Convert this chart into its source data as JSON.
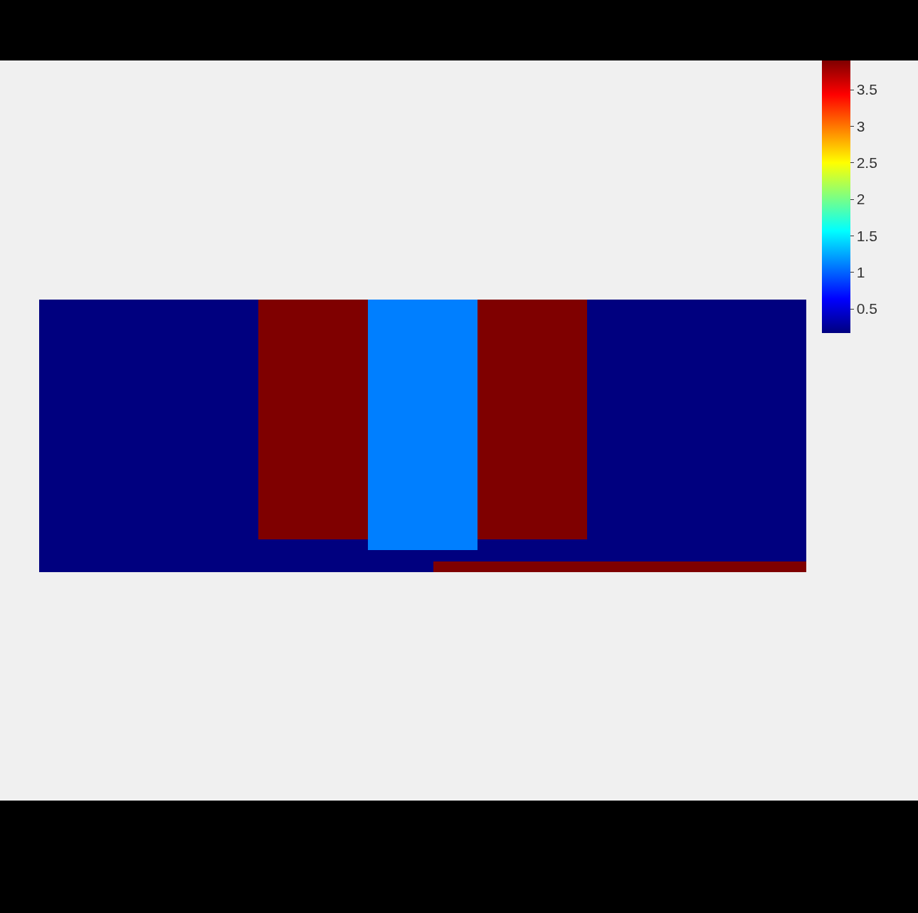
{
  "chart_data": {
    "type": "heatmap",
    "categories": [
      null,
      null,
      null,
      null,
      null,
      null,
      null,
      null,
      null,
      null,
      null,
      null,
      null,
      null,
      null,
      null,
      null,
      null,
      null,
      null,
      null,
      null,
      null,
      null,
      null,
      null,
      null,
      null,
      null,
      null,
      null,
      null,
      null,
      null,
      null
    ],
    "y_categories": [
      null,
      null,
      null,
      null,
      null,
      null,
      null,
      null,
      null,
      null,
      null,
      null,
      null,
      null,
      null,
      null,
      null,
      null,
      null,
      null,
      null,
      null,
      null,
      null,
      null
    ],
    "cells": [
      [
        0.17,
        0.17,
        0.17,
        0.17,
        0.17,
        0.17,
        0.17,
        0.17,
        0.17,
        0.17,
        3.9,
        3.9,
        3.9,
        3.9,
        3.9,
        1.1,
        1.1,
        1.1,
        1.1,
        1.1,
        3.9,
        3.9,
        3.9,
        3.9,
        3.9,
        0.17,
        0.17,
        0.17,
        0.17,
        0.17,
        0.17,
        0.17,
        0.17,
        0.17,
        0.17
      ],
      [
        0.17,
        0.17,
        0.17,
        0.17,
        0.17,
        0.17,
        0.17,
        0.17,
        0.17,
        0.17,
        3.9,
        3.9,
        3.9,
        3.9,
        3.9,
        1.1,
        1.1,
        1.1,
        1.1,
        1.1,
        3.9,
        3.9,
        3.9,
        3.9,
        3.9,
        0.17,
        0.17,
        0.17,
        0.17,
        0.17,
        0.17,
        0.17,
        0.17,
        0.17,
        0.17
      ],
      [
        0.17,
        0.17,
        0.17,
        0.17,
        0.17,
        0.17,
        0.17,
        0.17,
        0.17,
        0.17,
        3.9,
        3.9,
        3.9,
        3.9,
        3.9,
        1.1,
        1.1,
        1.1,
        1.1,
        1.1,
        3.9,
        3.9,
        3.9,
        3.9,
        3.9,
        0.17,
        0.17,
        0.17,
        0.17,
        0.17,
        0.17,
        0.17,
        0.17,
        0.17,
        0.17
      ],
      [
        0.17,
        0.17,
        0.17,
        0.17,
        0.17,
        0.17,
        0.17,
        0.17,
        0.17,
        0.17,
        3.9,
        3.9,
        3.9,
        3.9,
        3.9,
        1.1,
        1.1,
        1.1,
        1.1,
        1.1,
        3.9,
        3.9,
        3.9,
        3.9,
        3.9,
        0.17,
        0.17,
        0.17,
        0.17,
        0.17,
        0.17,
        0.17,
        0.17,
        0.17,
        0.17
      ],
      [
        0.17,
        0.17,
        0.17,
        0.17,
        0.17,
        0.17,
        0.17,
        0.17,
        0.17,
        0.17,
        3.9,
        3.9,
        3.9,
        3.9,
        3.9,
        1.1,
        1.1,
        1.1,
        1.1,
        1.1,
        3.9,
        3.9,
        3.9,
        3.9,
        3.9,
        0.17,
        0.17,
        0.17,
        0.17,
        0.17,
        0.17,
        0.17,
        0.17,
        0.17,
        0.17
      ],
      [
        0.17,
        0.17,
        0.17,
        0.17,
        0.17,
        0.17,
        0.17,
        0.17,
        0.17,
        0.17,
        3.9,
        3.9,
        3.9,
        3.9,
        3.9,
        1.1,
        1.1,
        1.1,
        1.1,
        1.1,
        3.9,
        3.9,
        3.9,
        3.9,
        3.9,
        0.17,
        0.17,
        0.17,
        0.17,
        0.17,
        0.17,
        0.17,
        0.17,
        0.17,
        0.17
      ],
      [
        0.17,
        0.17,
        0.17,
        0.17,
        0.17,
        0.17,
        0.17,
        0.17,
        0.17,
        0.17,
        3.9,
        3.9,
        3.9,
        3.9,
        3.9,
        1.1,
        1.1,
        1.1,
        1.1,
        1.1,
        3.9,
        3.9,
        3.9,
        3.9,
        3.9,
        0.17,
        0.17,
        0.17,
        0.17,
        0.17,
        0.17,
        0.17,
        0.17,
        0.17,
        0.17
      ],
      [
        0.17,
        0.17,
        0.17,
        0.17,
        0.17,
        0.17,
        0.17,
        0.17,
        0.17,
        0.17,
        3.9,
        3.9,
        3.9,
        3.9,
        3.9,
        1.1,
        1.1,
        1.1,
        1.1,
        1.1,
        3.9,
        3.9,
        3.9,
        3.9,
        3.9,
        0.17,
        0.17,
        0.17,
        0.17,
        0.17,
        0.17,
        0.17,
        0.17,
        0.17,
        0.17
      ],
      [
        0.17,
        0.17,
        0.17,
        0.17,
        0.17,
        0.17,
        0.17,
        0.17,
        0.17,
        0.17,
        3.9,
        3.9,
        3.9,
        3.9,
        3.9,
        1.1,
        1.1,
        1.1,
        1.1,
        1.1,
        3.9,
        3.9,
        3.9,
        3.9,
        3.9,
        0.17,
        0.17,
        0.17,
        0.17,
        0.17,
        0.17,
        0.17,
        0.17,
        0.17,
        0.17
      ],
      [
        0.17,
        0.17,
        0.17,
        0.17,
        0.17,
        0.17,
        0.17,
        0.17,
        0.17,
        0.17,
        3.9,
        3.9,
        3.9,
        3.9,
        3.9,
        1.1,
        1.1,
        1.1,
        1.1,
        1.1,
        3.9,
        3.9,
        3.9,
        3.9,
        3.9,
        0.17,
        0.17,
        0.17,
        0.17,
        0.17,
        0.17,
        0.17,
        0.17,
        0.17,
        0.17
      ],
      [
        0.17,
        0.17,
        0.17,
        0.17,
        0.17,
        0.17,
        0.17,
        0.17,
        0.17,
        0.17,
        3.9,
        3.9,
        3.9,
        3.9,
        3.9,
        1.1,
        1.1,
        1.1,
        1.1,
        1.1,
        3.9,
        3.9,
        3.9,
        3.9,
        3.9,
        0.17,
        0.17,
        0.17,
        0.17,
        0.17,
        0.17,
        0.17,
        0.17,
        0.17,
        0.17
      ],
      [
        0.17,
        0.17,
        0.17,
        0.17,
        0.17,
        0.17,
        0.17,
        0.17,
        0.17,
        0.17,
        3.9,
        3.9,
        3.9,
        3.9,
        3.9,
        1.1,
        1.1,
        1.1,
        1.1,
        1.1,
        3.9,
        3.9,
        3.9,
        3.9,
        3.9,
        0.17,
        0.17,
        0.17,
        0.17,
        0.17,
        0.17,
        0.17,
        0.17,
        0.17,
        0.17
      ],
      [
        0.17,
        0.17,
        0.17,
        0.17,
        0.17,
        0.17,
        0.17,
        0.17,
        0.17,
        0.17,
        3.9,
        3.9,
        3.9,
        3.9,
        3.9,
        1.1,
        1.1,
        1.1,
        1.1,
        1.1,
        3.9,
        3.9,
        3.9,
        3.9,
        3.9,
        0.17,
        0.17,
        0.17,
        0.17,
        0.17,
        0.17,
        0.17,
        0.17,
        0.17,
        0.17
      ],
      [
        0.17,
        0.17,
        0.17,
        0.17,
        0.17,
        0.17,
        0.17,
        0.17,
        0.17,
        0.17,
        3.9,
        3.9,
        3.9,
        3.9,
        3.9,
        1.1,
        1.1,
        1.1,
        1.1,
        1.1,
        3.9,
        3.9,
        3.9,
        3.9,
        3.9,
        0.17,
        0.17,
        0.17,
        0.17,
        0.17,
        0.17,
        0.17,
        0.17,
        0.17,
        0.17
      ],
      [
        0.17,
        0.17,
        0.17,
        0.17,
        0.17,
        0.17,
        0.17,
        0.17,
        0.17,
        0.17,
        3.9,
        3.9,
        3.9,
        3.9,
        3.9,
        1.1,
        1.1,
        1.1,
        1.1,
        1.1,
        3.9,
        3.9,
        3.9,
        3.9,
        3.9,
        0.17,
        0.17,
        0.17,
        0.17,
        0.17,
        0.17,
        0.17,
        0.17,
        0.17,
        0.17
      ],
      [
        0.17,
        0.17,
        0.17,
        0.17,
        0.17,
        0.17,
        0.17,
        0.17,
        0.17,
        0.17,
        3.9,
        3.9,
        3.9,
        3.9,
        3.9,
        1.1,
        1.1,
        1.1,
        1.1,
        1.1,
        3.9,
        3.9,
        3.9,
        3.9,
        3.9,
        0.17,
        0.17,
        0.17,
        0.17,
        0.17,
        0.17,
        0.17,
        0.17,
        0.17,
        0.17
      ],
      [
        0.17,
        0.17,
        0.17,
        0.17,
        0.17,
        0.17,
        0.17,
        0.17,
        0.17,
        0.17,
        3.9,
        3.9,
        3.9,
        3.9,
        3.9,
        1.1,
        1.1,
        1.1,
        1.1,
        1.1,
        3.9,
        3.9,
        3.9,
        3.9,
        3.9,
        0.17,
        0.17,
        0.17,
        0.17,
        0.17,
        0.17,
        0.17,
        0.17,
        0.17,
        0.17
      ],
      [
        0.17,
        0.17,
        0.17,
        0.17,
        0.17,
        0.17,
        0.17,
        0.17,
        0.17,
        0.17,
        3.9,
        3.9,
        3.9,
        3.9,
        3.9,
        1.1,
        1.1,
        1.1,
        1.1,
        1.1,
        3.9,
        3.9,
        3.9,
        3.9,
        3.9,
        0.17,
        0.17,
        0.17,
        0.17,
        0.17,
        0.17,
        0.17,
        0.17,
        0.17,
        0.17
      ],
      [
        0.17,
        0.17,
        0.17,
        0.17,
        0.17,
        0.17,
        0.17,
        0.17,
        0.17,
        0.17,
        3.9,
        3.9,
        3.9,
        3.9,
        3.9,
        1.1,
        1.1,
        1.1,
        1.1,
        1.1,
        3.9,
        3.9,
        3.9,
        3.9,
        3.9,
        0.17,
        0.17,
        0.17,
        0.17,
        0.17,
        0.17,
        0.17,
        0.17,
        0.17,
        0.17
      ],
      [
        0.17,
        0.17,
        0.17,
        0.17,
        0.17,
        0.17,
        0.17,
        0.17,
        0.17,
        0.17,
        3.9,
        3.9,
        3.9,
        3.9,
        3.9,
        1.1,
        1.1,
        1.1,
        1.1,
        1.1,
        3.9,
        3.9,
        3.9,
        3.9,
        3.9,
        0.17,
        0.17,
        0.17,
        0.17,
        0.17,
        0.17,
        0.17,
        0.17,
        0.17,
        0.17
      ],
      [
        0.17,
        0.17,
        0.17,
        0.17,
        0.17,
        0.17,
        0.17,
        0.17,
        0.17,
        0.17,
        3.9,
        3.9,
        3.9,
        3.9,
        3.9,
        1.1,
        1.1,
        1.1,
        1.1,
        1.1,
        3.9,
        3.9,
        3.9,
        3.9,
        3.9,
        0.17,
        0.17,
        0.17,
        0.17,
        0.17,
        0.17,
        0.17,
        0.17,
        0.17,
        0.17
      ],
      [
        0.17,
        0.17,
        0.17,
        0.17,
        0.17,
        0.17,
        0.17,
        0.17,
        0.17,
        0.17,
        3.9,
        3.9,
        3.9,
        3.9,
        3.9,
        1.1,
        1.1,
        1.1,
        1.1,
        1.1,
        3.9,
        3.9,
        3.9,
        3.9,
        3.9,
        0.17,
        0.17,
        0.17,
        0.17,
        0.17,
        0.17,
        0.17,
        0.17,
        0.17,
        0.17
      ],
      [
        0.17,
        0.17,
        0.17,
        0.17,
        0.17,
        0.17,
        0.17,
        0.17,
        0.17,
        0.17,
        0.17,
        0.17,
        0.17,
        0.17,
        0.17,
        1.1,
        1.1,
        1.1,
        1.1,
        1.1,
        0.17,
        0.17,
        0.17,
        0.17,
        0.17,
        0.17,
        0.17,
        0.17,
        0.17,
        0.17,
        0.17,
        0.17,
        0.17,
        0.17,
        0.17
      ],
      [
        0.17,
        0.17,
        0.17,
        0.17,
        0.17,
        0.17,
        0.17,
        0.17,
        0.17,
        0.17,
        0.17,
        0.17,
        0.17,
        0.17,
        0.17,
        0.17,
        0.17,
        0.17,
        0.17,
        0.17,
        0.17,
        0.17,
        0.17,
        0.17,
        0.17,
        0.17,
        0.17,
        0.17,
        0.17,
        0.17,
        0.17,
        0.17,
        0.17,
        0.17,
        0.17
      ],
      [
        0.17,
        0.17,
        0.17,
        0.17,
        0.17,
        0.17,
        0.17,
        0.17,
        0.17,
        0.17,
        0.17,
        0.17,
        0.17,
        0.17,
        0.17,
        0.17,
        0.17,
        0.17,
        3.9,
        3.9,
        3.9,
        3.9,
        3.9,
        3.9,
        3.9,
        3.9,
        3.9,
        3.9,
        3.9,
        3.9,
        3.9,
        3.9,
        3.9,
        3.9,
        3.9
      ]
    ],
    "clim": [
      0.17,
      3.9
    ],
    "cticks": [
      0.5,
      1,
      1.5,
      2,
      2.5,
      3,
      3.5
    ]
  }
}
